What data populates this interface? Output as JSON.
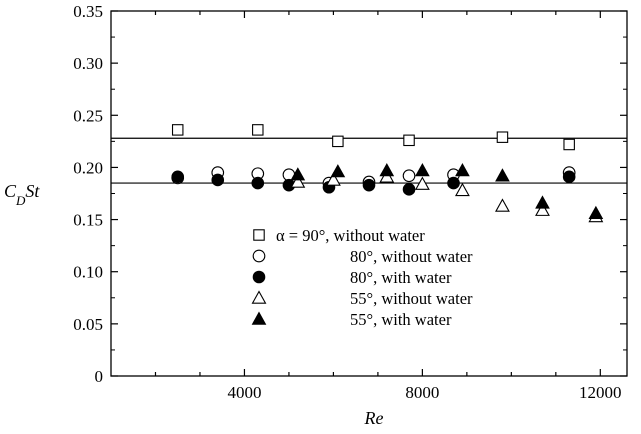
{
  "chart_data": {
    "type": "scatter",
    "title": "",
    "xlabel": "Re",
    "ylabel": {
      "main": "C",
      "sub": "D",
      "tail": "St"
    },
    "xlim": [
      1000,
      12600
    ],
    "ylim": [
      0,
      0.35
    ],
    "x_ticks": [
      4000,
      8000,
      12000
    ],
    "y_ticks": [
      0,
      0.05,
      0.1,
      0.15,
      0.2,
      0.25,
      0.3,
      0.35
    ],
    "y_tick_labels": [
      "0",
      "0.05",
      "0.10",
      "0.15",
      "0.20",
      "0.25",
      "0.30",
      "0.35"
    ],
    "x_tick_labels": [
      "4000",
      "8000",
      "12000"
    ],
    "grid": false,
    "legend_position": "bottom-center",
    "reference_lines": [
      {
        "y": 0.228
      },
      {
        "y": 0.185
      }
    ],
    "series": [
      {
        "name": "α = 90°, without water",
        "marker": "square-open",
        "points": [
          [
            2500,
            0.236
          ],
          [
            4300,
            0.236
          ],
          [
            6100,
            0.225
          ],
          [
            7700,
            0.226
          ],
          [
            9800,
            0.229
          ],
          [
            11300,
            0.222
          ]
        ]
      },
      {
        "name": "80°, without water",
        "marker": "circle-open",
        "points": [
          [
            2500,
            0.19
          ],
          [
            3400,
            0.195
          ],
          [
            4300,
            0.194
          ],
          [
            5000,
            0.193
          ],
          [
            5900,
            0.185
          ],
          [
            6800,
            0.186
          ],
          [
            7700,
            0.192
          ],
          [
            8700,
            0.193
          ],
          [
            11300,
            0.195
          ]
        ]
      },
      {
        "name": "80°, with water",
        "marker": "circle-filled",
        "points": [
          [
            2500,
            0.191
          ],
          [
            3400,
            0.188
          ],
          [
            4300,
            0.185
          ],
          [
            5000,
            0.183
          ],
          [
            5900,
            0.181
          ],
          [
            6800,
            0.183
          ],
          [
            7700,
            0.179
          ],
          [
            8700,
            0.185
          ],
          [
            11300,
            0.191
          ]
        ]
      },
      {
        "name": "55°, without water",
        "marker": "triangle-open",
        "points": [
          [
            5200,
            0.186
          ],
          [
            6000,
            0.188
          ],
          [
            7200,
            0.191
          ],
          [
            8000,
            0.184
          ],
          [
            8900,
            0.178
          ],
          [
            9800,
            0.163
          ],
          [
            10700,
            0.159
          ],
          [
            11900,
            0.153
          ]
        ]
      },
      {
        "name": "55°, with water",
        "marker": "triangle-filled",
        "points": [
          [
            5200,
            0.193
          ],
          [
            6100,
            0.196
          ],
          [
            7200,
            0.197
          ],
          [
            8000,
            0.197
          ],
          [
            8900,
            0.197
          ],
          [
            9800,
            0.192
          ],
          [
            10700,
            0.166
          ],
          [
            11900,
            0.156
          ]
        ]
      }
    ]
  }
}
